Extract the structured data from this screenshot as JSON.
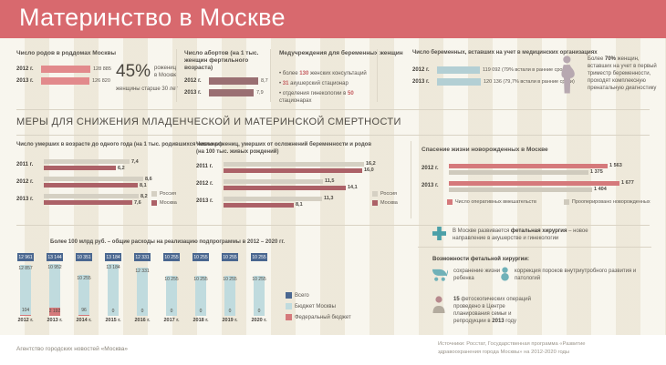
{
  "header": {
    "title": "Материнство в Москве"
  },
  "section_heading": "МЕРЫ ДЛЯ СНИЖЕНИЯ МЛАДЕНЧЕСКОЙ И МАТЕРИНСКОЙ СМЕРТНОСТИ",
  "colors": {
    "header_red": "#d8696e",
    "pink_bar": "#e28a8c",
    "mauve_bar": "#9a6f72",
    "russia_gray": "#d5d0c3",
    "moscow_dark_red": "#ac6167",
    "teal_bar": "#b3cfd4",
    "budget_total_blue": "#4a6790",
    "budget_moscow_blue": "#c0dbde",
    "budget_federal_red": "#d5797b",
    "accent_red": "#c4595c",
    "teal_icon": "#4ba0a8"
  },
  "top": {
    "births": {
      "title": "Число родов в роддомах Москвы",
      "stat": {
        "percent": "45%",
        "side1": "рожениц",
        "side2": "в Москве",
        "below": "женщины старше 30 лет"
      }
    },
    "abortions": {
      "title": "Число абортов (на 1 тыс. женщин фертильного возраста)"
    },
    "med": {
      "title": "Медучреждения для беременных женщин",
      "items": [
        {
          "pre": "• более ",
          "num": "130",
          "post": " женских консультаций"
        },
        {
          "pre": "• ",
          "num": "31",
          "post": " акушерский стационар"
        },
        {
          "pre": "• отделения гинекологии в ",
          "num": "50",
          "post": " стационарах"
        }
      ]
    },
    "registered": {
      "title": "Число беременных, вставших на учет в медицинских организациях"
    },
    "prenatal": {
      "pre": "Более ",
      "bold": "70%",
      "post": " женщин, вставших на учет в первый триместр беременности, проходят комплексную пренатальную диагностику"
    }
  },
  "mid": {
    "infant_title": "Число умерших в возрасте до одного года (на 1 тыс. родившихся живыми)",
    "maternal_title_1": "Число рожениц, умерших от осложнений беременности и родов",
    "maternal_title_2": "(на 100 тыс. живых рождений)",
    "newborn_title": "Спасение жизни новорожденных в Москве",
    "legend_russia": "Россия",
    "legend_moscow": "Москва",
    "legend_ops": "Число оперативных вмешательств",
    "legend_operated": "Прооперировано новорожденных"
  },
  "budget": {
    "title": "Более 100 млрд руб. – общие расходы на реализацию подпрограммы в 2012 – 2020 гг.",
    "legend": [
      "Всего",
      "Бюджет Москвы",
      "Федеральный бюджет"
    ]
  },
  "fetal": {
    "intro_pre": "В Москве развивается ",
    "intro_bold": "фетальная хирургия",
    "intro_post": " – новое направление в акушерстве и гинекологии",
    "possibilities_title": "Возможности фетальной хирургии:",
    "item1": "сохранение жизни ребенка",
    "item2": "коррекция пороков внутриутробного развития и патологий",
    "ops_bold1": "15",
    "ops_mid": " фетоскопических операций проведено в Центре планирования семьи и репродукции в ",
    "ops_bold2": "2013",
    "ops_post": " году"
  },
  "footer": {
    "left": "Агентство городских новостей «Москва»",
    "right_line1": "Источники: Росстат, Государственная программа «Развитие",
    "right_line2": "здравоохранения города Москвы» на 2012-2020 годы"
  },
  "chart_data": {
    "births_chart": {
      "type": "bar",
      "orientation": "horizontal",
      "title": "Число родов в роддомах Москвы",
      "categories": [
        "2012 г.",
        "2013 г."
      ],
      "values": [
        128885,
        126820
      ],
      "value_labels": [
        "128 885",
        "126 820"
      ],
      "max": 133000,
      "bar_color": "#e28a8c"
    },
    "abortions_chart": {
      "type": "bar",
      "orientation": "horizontal",
      "title": "Число абортов (на 1 тыс. женщин фертильного возраста)",
      "categories": [
        "2012 г.",
        "2013 г."
      ],
      "values": [
        8.7,
        7.9
      ],
      "value_labels": [
        "8,7",
        "7,9"
      ],
      "max": 9,
      "bar_color": "#9a6f72"
    },
    "registered_chart": {
      "type": "bar",
      "orientation": "horizontal",
      "title": "Число беременных, вставших на учет в медицинских организациях",
      "categories": [
        "2012 г.",
        "2013 г."
      ],
      "values": [
        119092,
        120136
      ],
      "value_labels": [
        "119 092 (79% встали в ранние сроки)",
        "120 136 (79,7% встали в ранние сроки)"
      ],
      "max": 126000,
      "bar_color": "#b3cfd4"
    },
    "infant_mortality": {
      "type": "bar",
      "orientation": "horizontal",
      "title": "Число умерших в возрасте до одного года (на 1 тыс. родившихся живыми)",
      "categories": [
        "2011 г.",
        "2012 г.",
        "2013 г."
      ],
      "max": 8.8,
      "series": [
        {
          "name": "Россия",
          "color": "#d5d0c3",
          "values": [
            7.4,
            8.6,
            8.2
          ],
          "value_labels": [
            "7,4",
            "8,6",
            "8,2"
          ]
        },
        {
          "name": "Москва",
          "color": "#ac6167",
          "values": [
            6.2,
            8.1,
            7.6
          ],
          "value_labels": [
            "6,2",
            "8,1",
            "7,6"
          ]
        }
      ]
    },
    "maternal_mortality": {
      "type": "bar",
      "orientation": "horizontal",
      "title": "Число рожениц, умерших от осложнений беременности и родов (на 100 тыс. живых рождений)",
      "categories": [
        "2011 г.",
        "2012 г.",
        "2013 г."
      ],
      "max": 16.6,
      "series": [
        {
          "name": "Россия",
          "color": "#d5d0c3",
          "values": [
            16.2,
            11.5,
            11.3
          ],
          "value_labels": [
            "16,2",
            "11,5",
            "11,3"
          ]
        },
        {
          "name": "Москва",
          "color": "#ac6167",
          "values": [
            16.0,
            14.1,
            8.1
          ],
          "value_labels": [
            "16,0",
            "14,1",
            "8,1"
          ]
        }
      ]
    },
    "newborn_surgery": {
      "type": "bar",
      "orientation": "horizontal",
      "title": "Спасение жизни новорожденных в Москве",
      "categories": [
        "2012 г.",
        "2013 г."
      ],
      "max": 1720,
      "series": [
        {
          "name": "Число оперативных вмешательств",
          "color": "#d5797b",
          "values": [
            1563,
            1677
          ],
          "value_labels": [
            "1 563",
            "1 677"
          ]
        },
        {
          "name": "Прооперировано новорожденных",
          "color": "#cfcabd",
          "values": [
            1375,
            1404
          ],
          "value_labels": [
            "1 375",
            "1 404"
          ]
        }
      ]
    },
    "budget_chart": {
      "type": "bar",
      "stacked": true,
      "title": "Более 100 млрд руб. – общие расходы на реализацию подпрограммы в 2012 – 2020 гг.",
      "categories": [
        "2012 г.",
        "2013 г.",
        "2014 г.",
        "2015 г.",
        "2016 г.",
        "2017 г.",
        "2018 г.",
        "2019 г.",
        "2020 г."
      ],
      "max": 13200,
      "series": [
        {
          "name": "Всего",
          "color": "#4a6790",
          "values": [
            12961,
            13144,
            10351,
            13184,
            12331,
            10255,
            10255,
            10255,
            10255
          ],
          "value_labels": [
            "12 961",
            "13 144",
            "10 351",
            "13 184",
            "12 331",
            "10 255",
            "10 255",
            "10 255",
            "10 255"
          ]
        },
        {
          "name": "Бюджет Москвы",
          "color": "#c0dbde",
          "values": [
            12857,
            10952,
            10255,
            13184,
            12331,
            10255,
            10255,
            10255,
            10255
          ],
          "value_labels": [
            "12 857",
            "10 952",
            "10 255",
            "13 184",
            "12 331",
            "10 255",
            "10 255",
            "10 255",
            "10 255"
          ]
        },
        {
          "name": "Федеральный бюджет",
          "color": "#d5797b",
          "values": [
            104,
            2192,
            96,
            0,
            0,
            0,
            0,
            0,
            0
          ],
          "value_labels": [
            "104",
            "2 192",
            "96",
            "0",
            "0",
            "0",
            "0",
            "0",
            "0"
          ]
        }
      ]
    }
  }
}
